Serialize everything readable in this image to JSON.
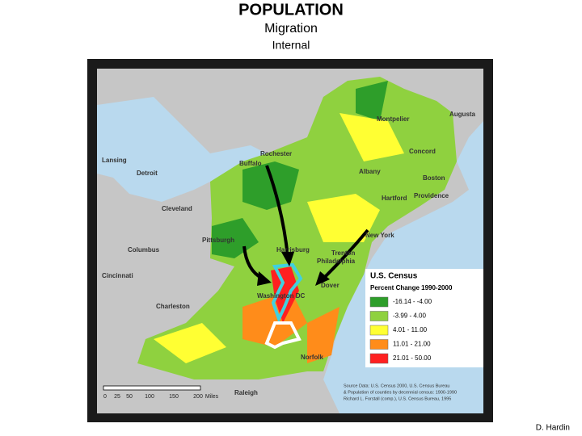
{
  "header": {
    "title": "POPULATION",
    "subtitle": "Migration",
    "section": "Internal"
  },
  "map": {
    "cities": [
      "Augusta",
      "Montpelier",
      "Concord",
      "Rochester",
      "Buffalo",
      "Lansing",
      "Detroit",
      "Albany",
      "Boston",
      "Hartford",
      "Providence",
      "Cleveland",
      "New York",
      "Pittsburgh",
      "Columbus",
      "Harrisburg",
      "Trenton",
      "Philadelphia",
      "Cincinnati",
      "Dover",
      "Washington DC",
      "Charleston",
      "Norfolk",
      "Raleigh"
    ],
    "legend": {
      "title": "U.S. Census",
      "heading": "Percent Change 1990-2000",
      "items": [
        {
          "label": "-16.14 - -4.00",
          "color": "#2e9e2a"
        },
        {
          "label": "-3.99 - 4.00",
          "color": "#8fd13f"
        },
        {
          "label": "4.01 - 11.00",
          "color": "#ffff33"
        },
        {
          "label": "11.01 - 21.00",
          "color": "#ff8c1a"
        },
        {
          "label": "21.01 - 50.00",
          "color": "#ff2020"
        }
      ]
    },
    "source": [
      "Source Data: U.S. Census 2000, U.S. Census Bureau",
      "& Population of counties by decennial census: 1900-1990",
      "Richard L. Forstall (comp.), U.S. Census Bureau, 1995"
    ],
    "scale": [
      "0",
      "25",
      "50",
      "100",
      "150",
      "200",
      "Miles"
    ]
  },
  "credit": "D. Hardin"
}
